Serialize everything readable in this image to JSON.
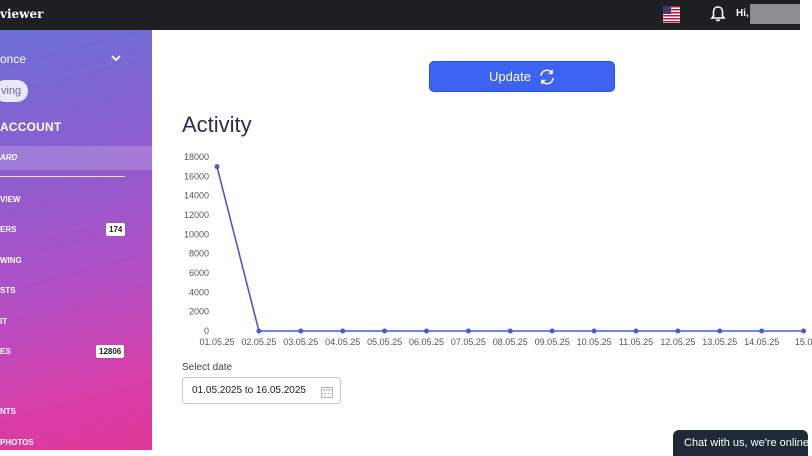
{
  "topbar": {
    "brand": "viewer",
    "flag_icon": "us-flag-icon",
    "bell_icon": "bell-icon",
    "greeting": "Hi,"
  },
  "sidebar": {
    "account_name": "once",
    "plan_pill": "ving",
    "heading": "ACCOUNT",
    "active_item": "ARD",
    "items": [
      {
        "label": "VIEW",
        "badge": ""
      },
      {
        "label": "ERS",
        "badge": "174"
      },
      {
        "label": "WING",
        "badge": ""
      },
      {
        "label": "STS",
        "badge": ""
      },
      {
        "label": "IT",
        "badge": ""
      },
      {
        "label": "ES",
        "badge": "12806"
      },
      {
        "label": "NTS",
        "badge": ""
      },
      {
        "label": "PHOTOS",
        "badge": ""
      }
    ]
  },
  "main": {
    "update_button": "Update",
    "title": "Activity",
    "select_date_label": "Select date",
    "date_range": "01.05.2025 to 16.05.2025"
  },
  "chart_data": {
    "type": "line",
    "categories": [
      "01.05.25",
      "02.05.25",
      "03.05.25",
      "04.05.25",
      "05.05.25",
      "06.05.25",
      "07.05.25",
      "08.05.25",
      "09.05.25",
      "10.05.25",
      "11.05.25",
      "12.05.25",
      "13.05.25",
      "14.05.25",
      "15.0"
    ],
    "series": [
      {
        "values": [
          17000,
          0,
          0,
          0,
          0,
          0,
          0,
          0,
          0,
          0,
          0,
          0,
          0,
          0,
          0
        ]
      }
    ],
    "y_ticks": [
      "18000",
      "16000",
      "14000",
      "12000",
      "10000",
      "8000",
      "6000",
      "4000",
      "2000",
      "0"
    ],
    "ylim": [
      0,
      18000
    ],
    "grid": false,
    "color": "#4a5bd0"
  },
  "chat": {
    "label": "Chat with us, we're online!"
  }
}
